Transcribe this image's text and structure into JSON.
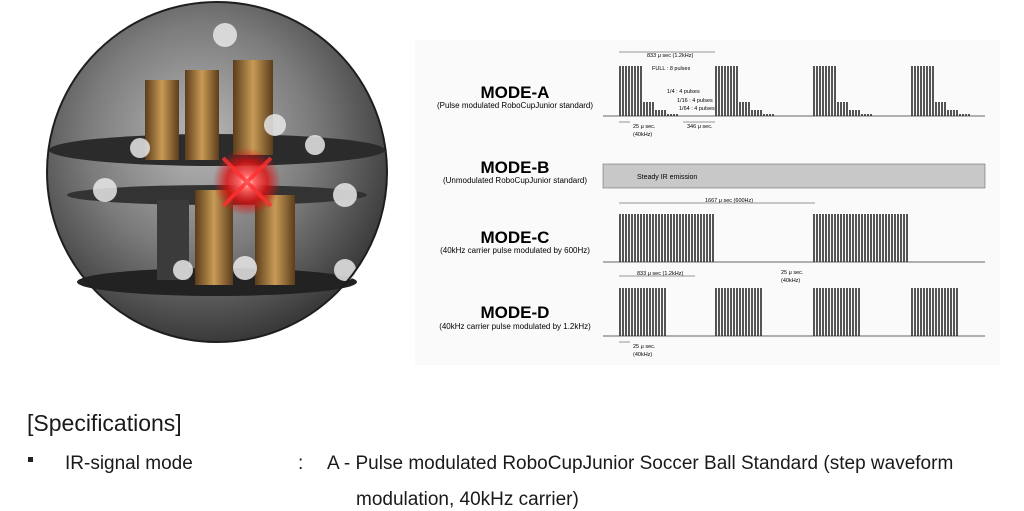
{
  "diagram": {
    "modes": [
      {
        "title": "MODE-A",
        "subtitle": "(Pulse modulated RoboCupJunior standard)"
      },
      {
        "title": "MODE-B",
        "subtitle": "(Unmodulated RoboCupJunior standard)"
      },
      {
        "title": "MODE-C",
        "subtitle": "(40kHz carrier pulse modulated by 600Hz)"
      },
      {
        "title": "MODE-D",
        "subtitle": "(40kHz carrier pulse modulated by 1.2kHz)"
      }
    ],
    "annotations": {
      "a_period": "833 μ sec (1.2kHz)",
      "a_full": "FULL : 8 pulses",
      "a_quarter": "1/4 : 4 pulses",
      "a_sixteenth": "1/16 : 4 pulses",
      "a_sixtyfourth": "1/64 : 4 pulses",
      "a_carrier": "25 μ sec.",
      "a_carrier_freq": "(40kHz)",
      "a_gap": "346 μ sec.",
      "b_label": "Steady IR emission",
      "c_period": "1667 μ sec (600Hz)",
      "d_period": "833 μ sec (1.2kHz)",
      "d_carrier_top": "25 μ sec.",
      "d_carrier_top_freq": "(40kHz)",
      "d_carrier": "25 μ sec.",
      "d_carrier_freq": "(40kHz)"
    }
  },
  "specs": {
    "heading": "[Specifications]",
    "rows": [
      {
        "label": "IR-signal mode",
        "colon": ":",
        "value": "A - Pulse modulated RoboCupJunior Soccer Ball Standard (step waveform",
        "continuation": "modulation, 40kHz carrier)"
      }
    ]
  }
}
